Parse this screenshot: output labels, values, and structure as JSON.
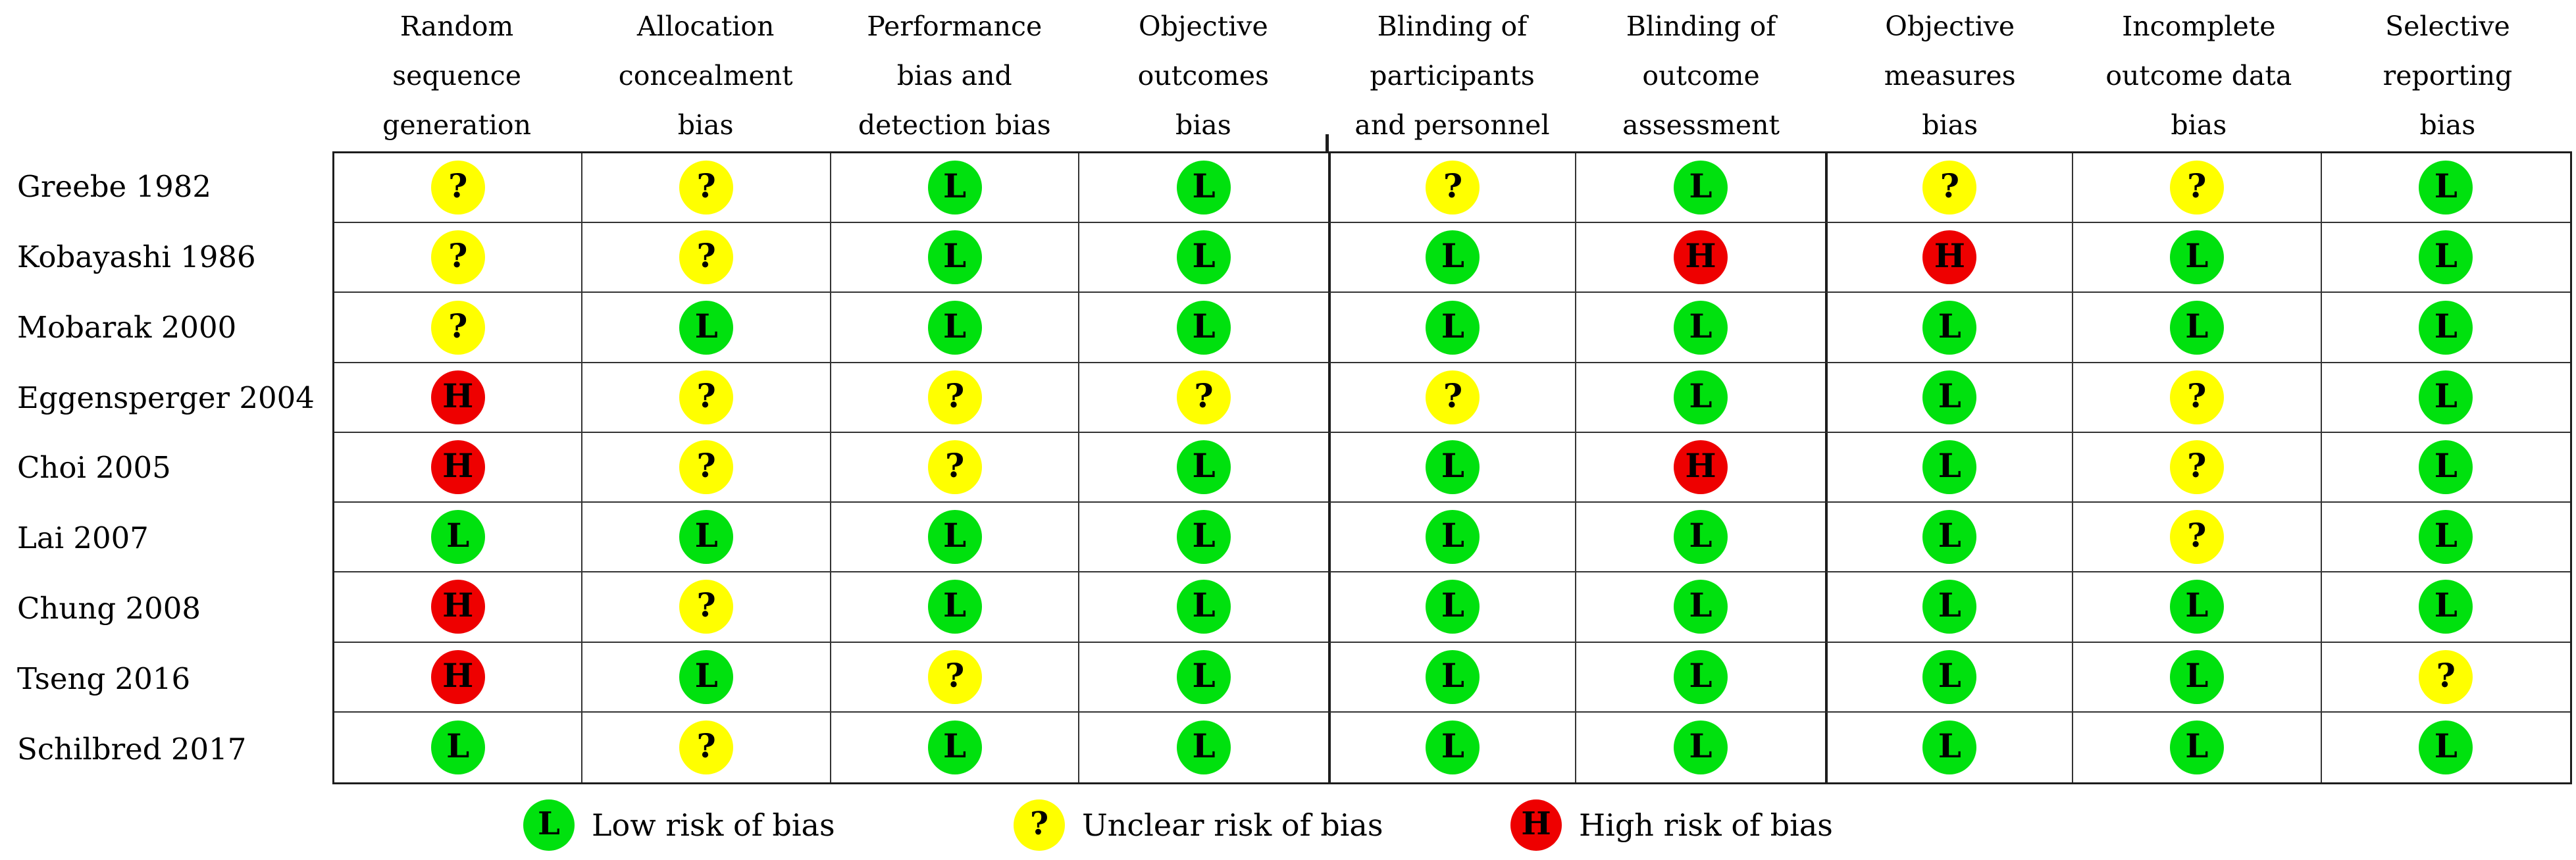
{
  "figure": {
    "columns": [
      {
        "lines": [
          "Random",
          "sequence",
          "generation"
        ]
      },
      {
        "lines": [
          "Allocation",
          "concealment",
          "bias"
        ]
      },
      {
        "lines": [
          "Performance",
          "bias and",
          "detection bias"
        ]
      },
      {
        "lines": [
          "Objective",
          "outcomes",
          "bias"
        ]
      },
      {
        "lines": [
          "Blinding of",
          "participants",
          "and personnel"
        ]
      },
      {
        "lines": [
          "Blinding of",
          "outcome",
          "assessment"
        ]
      },
      {
        "lines": [
          "Objective",
          "measures",
          "bias"
        ]
      },
      {
        "lines": [
          "Incomplete",
          "outcome data",
          "bias"
        ]
      },
      {
        "lines": [
          "Selective",
          "reporting",
          "bias"
        ]
      }
    ],
    "rows": [
      {
        "study": "Greebe 1982",
        "ratings": [
          "unclear",
          "unclear",
          "low",
          "low",
          "unclear",
          "low",
          "unclear",
          "unclear",
          "low"
        ]
      },
      {
        "study": "Kobayashi 1986",
        "ratings": [
          "unclear",
          "unclear",
          "low",
          "low",
          "low",
          "high",
          "high",
          "low",
          "low"
        ]
      },
      {
        "study": "Mobarak 2000",
        "ratings": [
          "unclear",
          "low",
          "low",
          "low",
          "low",
          "low",
          "low",
          "low",
          "low"
        ]
      },
      {
        "study": "Eggensperger 2004",
        "ratings": [
          "high",
          "unclear",
          "unclear",
          "unclear",
          "unclear",
          "low",
          "low",
          "unclear",
          "low"
        ]
      },
      {
        "study": "Choi 2005",
        "ratings": [
          "high",
          "unclear",
          "unclear",
          "low",
          "low",
          "high",
          "low",
          "unclear",
          "low"
        ]
      },
      {
        "study": "Lai 2007",
        "ratings": [
          "low",
          "low",
          "low",
          "low",
          "low",
          "low",
          "low",
          "unclear",
          "low"
        ]
      },
      {
        "study": "Chung 2008",
        "ratings": [
          "high",
          "unclear",
          "low",
          "low",
          "low",
          "low",
          "low",
          "low",
          "low"
        ]
      },
      {
        "study": "Tseng 2016",
        "ratings": [
          "high",
          "low",
          "unclear",
          "low",
          "low",
          "low",
          "low",
          "low",
          "unclear"
        ]
      },
      {
        "study": "Schilbred 2017",
        "ratings": [
          "low",
          "unclear",
          "low",
          "low",
          "low",
          "low",
          "low",
          "low",
          "low"
        ]
      }
    ],
    "rating_styles": {
      "low": {
        "symbol": "L",
        "color": "#00e10e"
      },
      "unclear": {
        "symbol": "?",
        "color": "#ffff00"
      },
      "high": {
        "symbol": "H",
        "color": "#ee0000"
      }
    },
    "legend": [
      {
        "rating": "low",
        "label": "Low risk of bias"
      },
      {
        "rating": "unclear",
        "label": "Unclear risk of bias"
      },
      {
        "rating": "high",
        "label": "High risk of bias"
      }
    ]
  },
  "chart_data": {
    "type": "table",
    "title": "Risk of bias summary",
    "categories": [
      "Random sequence generation",
      "Allocation concealment bias",
      "Performance bias and detection bias",
      "Objective outcomes bias",
      "Blinding of participants and personnel",
      "Blinding of outcome assessment",
      "Objective measures bias",
      "Incomplete outcome data bias",
      "Selective reporting bias"
    ],
    "rows": [
      {
        "study": "Greebe 1982",
        "values": [
          "?",
          "?",
          "L",
          "L",
          "?",
          "L",
          "?",
          "?",
          "L"
        ]
      },
      {
        "study": "Kobayashi 1986",
        "values": [
          "?",
          "?",
          "L",
          "L",
          "L",
          "H",
          "H",
          "L",
          "L"
        ]
      },
      {
        "study": "Mobarak 2000",
        "values": [
          "?",
          "L",
          "L",
          "L",
          "L",
          "L",
          "L",
          "L",
          "L"
        ]
      },
      {
        "study": "Eggensperger 2004",
        "values": [
          "H",
          "?",
          "?",
          "?",
          "?",
          "L",
          "L",
          "?",
          "L"
        ]
      },
      {
        "study": "Choi 2005",
        "values": [
          "H",
          "?",
          "?",
          "L",
          "L",
          "H",
          "L",
          "?",
          "L"
        ]
      },
      {
        "study": "Lai 2007",
        "values": [
          "L",
          "L",
          "L",
          "L",
          "L",
          "L",
          "L",
          "?",
          "L"
        ]
      },
      {
        "study": "Chung 2008",
        "values": [
          "H",
          "?",
          "L",
          "L",
          "L",
          "L",
          "L",
          "L",
          "L"
        ]
      },
      {
        "study": "Tseng 2016",
        "values": [
          "H",
          "L",
          "?",
          "L",
          "L",
          "L",
          "L",
          "L",
          "?"
        ]
      },
      {
        "study": "Schilbred 2017",
        "values": [
          "L",
          "?",
          "L",
          "L",
          "L",
          "L",
          "L",
          "L",
          "L"
        ]
      }
    ],
    "legend": {
      "L": "Low risk of bias",
      "?": "Unclear risk of bias",
      "H": "High risk of bias"
    },
    "value_colors": {
      "L": "#00e10e",
      "?": "#ffff00",
      "H": "#ee0000"
    },
    "layout": {
      "grid": true,
      "legend_position": "bottom"
    }
  }
}
